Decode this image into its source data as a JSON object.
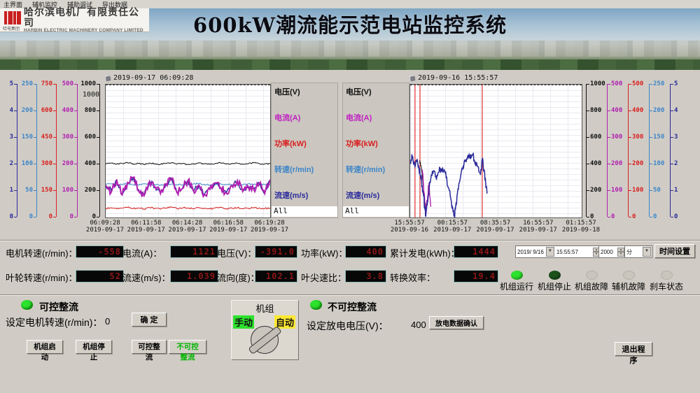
{
  "menu": {
    "items": [
      "主界面",
      "辅机监控",
      "辅助调试",
      "导出数据"
    ]
  },
  "header": {
    "logo_caption": "哈电集团",
    "company_cn": "哈尔滨电机厂有限责任公司",
    "company_en": "HARBIN ELECTRIC MACHINERY COMPANY LIMITED",
    "title": "600kW潮流能示范电站监控系统"
  },
  "legend": {
    "items": [
      {
        "label": "电压(V)",
        "color": "#101010"
      },
      {
        "label": "电流(A)",
        "color": "#c020c0"
      },
      {
        "label": "功率(kW)",
        "color": "#d82020"
      },
      {
        "label": "转速(r/min)",
        "color": "#3d85c8"
      },
      {
        "label": "流速(m/s)",
        "color": "#2a2a9a"
      }
    ],
    "all_label": "All"
  },
  "chart_data": [
    {
      "type": "line",
      "timestamp": "2019-09-17 06:09:28",
      "inner_max_label": "1000",
      "x_ticks": [
        {
          "time": "06:09:28",
          "date": "2019-09-17"
        },
        {
          "time": "06:11:58",
          "date": "2019-09-17"
        },
        {
          "time": "06:14:28",
          "date": "2019-09-17"
        },
        {
          "time": "06:16:58",
          "date": "2019-09-17"
        },
        {
          "time": "06:19:28",
          "date": "2019-09-17"
        }
      ],
      "axes": [
        {
          "name": "流速(m/s)",
          "color": "#2a2a9a",
          "max": 5,
          "ticks": [
            0,
            1,
            2,
            3,
            4,
            5
          ]
        },
        {
          "name": "转速(r/min)",
          "color": "#3d85c8",
          "max": 250,
          "ticks": [
            0,
            50,
            100,
            150,
            200,
            250
          ]
        },
        {
          "name": "功率(kW)",
          "color": "#d82020",
          "max": 750,
          "ticks": [
            0,
            150,
            300,
            450,
            600,
            750
          ]
        },
        {
          "name": "电流(A)",
          "color": "#b020b0",
          "max": 500,
          "ticks": [
            0,
            100,
            200,
            300,
            400,
            500
          ]
        },
        {
          "name": "电压(V)",
          "color": "#101010",
          "max": 1000,
          "ticks": [
            0,
            200,
            400,
            600,
            800,
            1000
          ]
        }
      ],
      "series": [
        {
          "name": "功率(kW)",
          "color": "#d82020",
          "max": 750,
          "width": 1,
          "jitter": 5,
          "y": [
            52,
            55,
            49,
            53,
            57,
            50,
            54,
            48,
            56,
            52,
            47,
            54,
            58,
            50,
            55,
            51,
            49,
            56,
            53,
            48,
            54,
            57,
            50,
            53,
            55,
            49,
            52,
            56,
            54,
            50,
            53
          ]
        },
        {
          "name": "转速(r/min)",
          "color": "#3d85c8",
          "max": 250,
          "width": 1,
          "jitter": 1.5,
          "y": [
            62,
            63,
            61,
            62,
            64,
            62,
            61,
            63,
            62,
            62,
            61,
            62,
            63,
            62,
            61,
            62,
            63,
            64,
            62,
            61,
            62,
            63,
            62,
            62,
            61,
            62,
            63,
            62,
            61,
            62,
            62
          ]
        },
        {
          "name": "流速(m/s)",
          "color": "#2a2a9a",
          "max": 5,
          "width": 1.4,
          "jitter": 0.1,
          "y": [
            1.2,
            1.0,
            1.42,
            0.85,
            1.3,
            1.5,
            1.05,
            0.82,
            1.36,
            1.15,
            0.9,
            1.26,
            1.46,
            0.95,
            1.1,
            1.4,
            1.0,
            1.2,
            0.86,
            1.06,
            1.3,
            1.1,
            0.92,
            1.2,
            1.36,
            0.98,
            1.15,
            1.05,
            1.28,
            0.9,
            1.4
          ]
        },
        {
          "name": "电流(A)",
          "color": "#b020b0",
          "max": 500,
          "width": 2,
          "jitter": 14,
          "y": [
            120,
            95,
            142,
            85,
            132,
            150,
            100,
            82,
            136,
            115,
            90,
            126,
            148,
            95,
            110,
            140,
            100,
            122,
            86,
            106,
            130,
            112,
            92,
            120,
            138,
            98,
            115,
            105,
            128,
            90,
            143
          ]
        },
        {
          "name": "电压(V)",
          "color": "#101010",
          "max": 1000,
          "width": 1,
          "jitter": 5,
          "y": [
            404,
            409,
            401,
            407,
            412,
            403,
            406,
            399,
            410,
            404,
            400,
            408,
            413,
            402,
            406,
            399,
            405,
            411,
            403,
            400,
            407,
            410,
            402,
            405,
            408,
            401,
            404,
            412,
            406,
            402,
            405
          ]
        }
      ]
    },
    {
      "type": "line",
      "timestamp": "2019-09-16 15:55:57",
      "inner_max_label": "1000",
      "x_ticks": [
        {
          "time": "15:55:57",
          "date": "2019-09-16"
        },
        {
          "time": "00:15:57",
          "date": "2019-09-17"
        },
        {
          "time": "08:35:57",
          "date": "2019-09-17"
        },
        {
          "time": "16:55:57",
          "date": "2019-09-17"
        },
        {
          "time": "01:15:57",
          "date": "2019-09-18"
        }
      ],
      "axes": [
        {
          "name": "电压(V)",
          "color": "#101010",
          "max": 1000,
          "ticks": [
            0,
            200,
            400,
            600,
            800,
            1000
          ]
        },
        {
          "name": "电流(A)",
          "color": "#b020b0",
          "max": 500,
          "ticks": [
            0,
            100,
            200,
            300,
            400,
            500
          ]
        },
        {
          "name": "功率(kW)",
          "color": "#d82020",
          "max": 500,
          "ticks": [
            0,
            100,
            200,
            300,
            400,
            500
          ]
        },
        {
          "name": "转速(r/min)",
          "color": "#3d85c8",
          "max": 250,
          "ticks": [
            0,
            50,
            100,
            150,
            200,
            250
          ]
        },
        {
          "name": "流速(m/s)",
          "color": "#2a2a9a",
          "max": 5,
          "ticks": [
            0,
            1,
            2,
            3,
            4,
            5
          ]
        }
      ],
      "vlines": {
        "color": "#e03030",
        "x": [
          0.028,
          0.057,
          0.42
        ]
      },
      "series": [
        {
          "name": "电压(V)",
          "color": "#101010",
          "max": 1000,
          "width": 1,
          "jitter": 15,
          "x": [
            0.055,
            0.065,
            0.075,
            0.085,
            0.095
          ],
          "y": [
            430,
            380,
            250,
            120,
            60
          ]
        },
        {
          "name": "电流(A)",
          "color": "#b020b0",
          "max": 500,
          "width": 1.4,
          "jitter": 20,
          "x": [
            0.07,
            0.08,
            0.09,
            0.1,
            0.11,
            0.12
          ],
          "y": [
            180,
            90,
            20,
            60,
            130,
            40
          ]
        },
        {
          "name": "流速(m/s)",
          "color": "#2a2a9a",
          "max": 5,
          "width": 1.5,
          "jitter": 0.16,
          "x": [
            0,
            0.012,
            0.025,
            0.04,
            0.05,
            0.06,
            0.07,
            0.078,
            0.085,
            0.09,
            0.095,
            0.105,
            0.115,
            0.125,
            0.135,
            0.15,
            0.165,
            0.18,
            0.195,
            0.21,
            0.225,
            0.24,
            0.25,
            0.258,
            0.265,
            0.275,
            0.29,
            0.305,
            0.32,
            0.335,
            0.35,
            0.365,
            0.38,
            0.395,
            0.41,
            0.42,
            0.43,
            0.44,
            0.448
          ],
          "y": [
            2.1,
            2.25,
            2.0,
            2.2,
            1.9,
            1.6,
            1.2,
            0.8,
            0.4,
            0.1,
            0.3,
            0.8,
            1.3,
            1.6,
            1.75,
            1.55,
            1.7,
            1.85,
            1.75,
            1.5,
            1.1,
            0.6,
            0.2,
            0.05,
            0.4,
            0.9,
            1.4,
            1.8,
            2.1,
            2.3,
            2.2,
            2.35,
            2.1,
            1.9,
            1.6,
            2.2,
            1.8,
            1.3,
            0.9
          ]
        }
      ]
    }
  ],
  "readouts": {
    "row1": [
      {
        "label": "电机转速(r/min)：",
        "value": "-558"
      },
      {
        "label": "电流(A)：",
        "value": "1121"
      },
      {
        "label": "电压(V)：",
        "value": "-391.0"
      },
      {
        "label": "功率(kW)：",
        "value": "400"
      },
      {
        "label": "累计发电(kWh)：",
        "value": "1444"
      }
    ],
    "row2": [
      {
        "label": "叶轮转速(r/min)：",
        "value": "52"
      },
      {
        "label": "流速(m/s)：",
        "value": "1.039"
      },
      {
        "label": "流向(度)：",
        "value": "102.1"
      },
      {
        "label": "叶尖速比：",
        "value": "3.8"
      },
      {
        "label": "转换效率：",
        "value": "19.4"
      }
    ]
  },
  "timebar": {
    "date_value": "2019/ 9/16",
    "time_value": "15:55:57",
    "interval_value": "2000",
    "unit_value": "分",
    "set_button": "时间设置"
  },
  "status_leds": [
    {
      "label": "机组运行",
      "color": "#2de22d"
    },
    {
      "label": "机组停止",
      "color": "#1d521d"
    },
    {
      "label": "机组故障",
      "color": "#c9c5bd"
    },
    {
      "label": "辅机故障",
      "color": "#c9c5bd"
    },
    {
      "label": "刹车状态",
      "color": "#c9c5bd"
    }
  ],
  "controls": {
    "rectifier_controlled_label": "可控整流",
    "set_speed_label": "设定电机转速(r/min)：",
    "set_speed_value": "0",
    "confirm_button": "确 定",
    "buttons": [
      {
        "label": "机组启动"
      },
      {
        "label": "机组停止"
      },
      {
        "label": "可控整流"
      },
      {
        "label": "不可控整流",
        "green": true
      }
    ],
    "unit_panel": {
      "title": "机组",
      "manual": "手动",
      "auto": "自动"
    },
    "rectifier_uncontrolled_label": "不可控整流",
    "set_voltage_label": "设定放电电压(V)：",
    "set_voltage_value": "400",
    "discharge_button": "放电数据确认",
    "exit_button": "退出程序"
  }
}
